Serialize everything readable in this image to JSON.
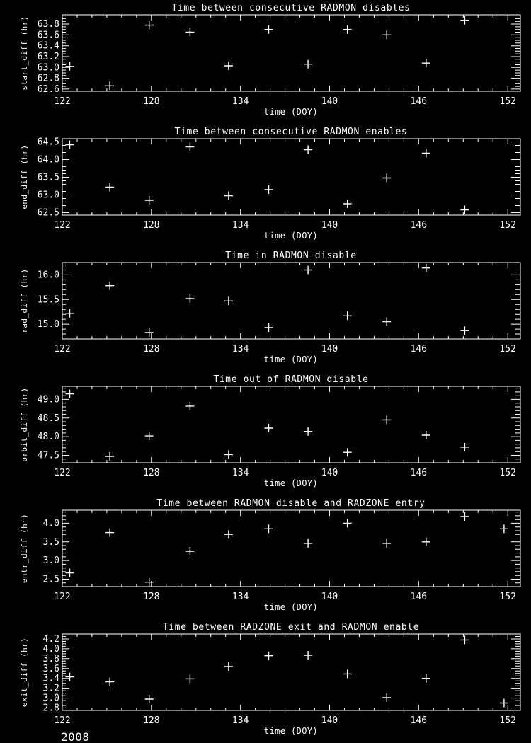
{
  "figure": {
    "background": "#000000",
    "foreground": "#ffffff",
    "year_label": "2008",
    "x_axis": {
      "label": "time (DOY)",
      "min": 122,
      "max": 152.85,
      "major_ticks": [
        122,
        128,
        134,
        140,
        146,
        152
      ],
      "minor_step": 1
    }
  },
  "chart_data": [
    {
      "type": "scatter",
      "title": "Time between consecutive RADMON disables",
      "ylabel": "start_diff (hr)",
      "xlabel": "time (DOY)",
      "marker": "+",
      "ylim": [
        62.56,
        63.97
      ],
      "yticks": [
        62.6,
        62.8,
        63.0,
        63.2,
        63.4,
        63.6,
        63.8
      ],
      "y_minor_divisions": 4,
      "x": [
        122.5,
        125.2,
        127.85,
        130.6,
        133.2,
        135.9,
        138.55,
        141.2,
        143.85,
        146.5,
        149.1
      ],
      "y": [
        63.02,
        62.66,
        63.78,
        63.65,
        63.03,
        63.7,
        63.06,
        63.7,
        63.6,
        63.08,
        63.87
      ]
    },
    {
      "type": "scatter",
      "title": "Time between consecutive RADMON enables",
      "ylabel": "end_diff (hr)",
      "xlabel": "time (DOY)",
      "marker": "+",
      "ylim": [
        62.43,
        64.59
      ],
      "yticks": [
        62.5,
        63.0,
        63.5,
        64.0,
        64.5
      ],
      "y_minor_divisions": 5,
      "x": [
        122.5,
        125.2,
        127.85,
        130.6,
        133.2,
        135.9,
        138.55,
        141.2,
        143.85,
        146.5,
        149.1
      ],
      "y": [
        64.42,
        63.22,
        62.85,
        64.36,
        62.98,
        63.15,
        64.28,
        62.75,
        63.48,
        64.18,
        62.58
      ]
    },
    {
      "type": "scatter",
      "title": "Time in RADMON disable",
      "ylabel": "rad_diff (hr)",
      "xlabel": "time (DOY)",
      "marker": "+",
      "ylim": [
        14.7,
        16.25
      ],
      "yticks": [
        15.0,
        15.5,
        16.0
      ],
      "y_minor_divisions": 5,
      "x": [
        122.5,
        125.2,
        127.85,
        130.6,
        133.2,
        135.9,
        138.55,
        141.2,
        143.85,
        146.5,
        149.1
      ],
      "y": [
        15.22,
        15.78,
        14.83,
        15.52,
        15.47,
        14.93,
        16.1,
        15.17,
        15.05,
        16.14,
        14.87
      ]
    },
    {
      "type": "scatter",
      "title": "Time out of RADMON disable",
      "ylabel": "orbit_diff (hr)",
      "xlabel": "time (DOY)",
      "marker": "+",
      "ylim": [
        47.3,
        49.35
      ],
      "yticks": [
        47.5,
        48.0,
        48.5,
        49.0
      ],
      "y_minor_divisions": 5,
      "x": [
        122.5,
        125.2,
        127.85,
        130.6,
        133.2,
        135.9,
        138.55,
        141.2,
        143.85,
        146.5,
        149.1
      ],
      "y": [
        49.15,
        47.47,
        48.02,
        48.82,
        47.52,
        48.23,
        48.14,
        47.58,
        48.45,
        48.04,
        47.72
      ]
    },
    {
      "type": "scatter",
      "title": "Time between RADMON disable and RADZONE entry",
      "ylabel": "entr_diff (hr)",
      "xlabel": "time (DOY)",
      "marker": "+",
      "ylim": [
        2.3,
        4.35
      ],
      "yticks": [
        2.5,
        3.0,
        3.5,
        4.0
      ],
      "y_minor_divisions": 5,
      "x": [
        122.5,
        125.2,
        127.85,
        130.6,
        133.2,
        135.9,
        138.55,
        141.2,
        143.85,
        146.5,
        149.1,
        151.75
      ],
      "y": [
        2.67,
        3.75,
        2.42,
        3.25,
        3.7,
        3.85,
        3.46,
        4.0,
        3.46,
        3.5,
        4.18,
        3.85
      ]
    },
    {
      "type": "scatter",
      "title": "Time between RADZONE exit and RADMON enable",
      "ylabel": "exit_diff (hr)",
      "xlabel": "time (DOY)",
      "marker": "+",
      "ylim": [
        2.75,
        4.3
      ],
      "yticks": [
        2.8,
        3.0,
        3.2,
        3.4,
        3.6,
        3.8,
        4.0,
        4.2
      ],
      "y_minor_divisions": 4,
      "x": [
        122.5,
        125.2,
        127.85,
        130.6,
        133.2,
        135.9,
        138.55,
        141.2,
        143.85,
        146.5,
        149.1,
        151.75
      ],
      "y": [
        3.43,
        3.33,
        2.98,
        3.39,
        3.64,
        3.86,
        3.87,
        3.49,
        3.01,
        3.4,
        4.18,
        2.9
      ]
    }
  ]
}
